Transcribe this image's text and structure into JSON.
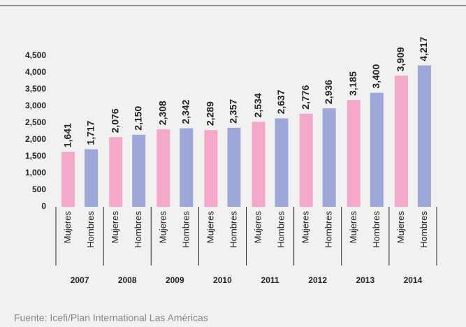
{
  "chart_data": {
    "type": "bar",
    "categories": [
      "2007",
      "2008",
      "2009",
      "2010",
      "2011",
      "2012",
      "2013",
      "2014"
    ],
    "series": [
      {
        "name": "Mujeres",
        "color": "#f4a9ca",
        "values": [
          1641,
          2076,
          2308,
          2289,
          2534,
          2776,
          3185,
          3909
        ],
        "value_labels": [
          "1,641",
          "2,076",
          "2,308",
          "2,289",
          "2,534",
          "2,776",
          "3,185",
          "3,909"
        ]
      },
      {
        "name": "Hombres",
        "color": "#9da7d8",
        "values": [
          1717,
          2150,
          2342,
          2357,
          2637,
          2936,
          3400,
          4217
        ],
        "value_labels": [
          "1,717",
          "2,150",
          "2,342",
          "2,357",
          "2,637",
          "2,936",
          "3,400",
          "4,217"
        ]
      }
    ],
    "ylim": [
      0,
      4500
    ],
    "yticks": [
      0,
      500,
      {
        "value": 1000,
        "label": "1,000"
      },
      {
        "value": 1500,
        "label": "1,500"
      },
      {
        "value": 2000,
        "label": "2,000"
      },
      {
        "value": 2500,
        "label": "2,500"
      },
      {
        "value": 3000,
        "label": "3,000"
      },
      {
        "value": 3500,
        "label": "3,500"
      },
      {
        "value": 4000,
        "label": "4,000"
      },
      {
        "value": 4500,
        "label": "4,500"
      }
    ],
    "grid": false,
    "source": "Fuente: Icefi/Plan International Las Américas"
  }
}
